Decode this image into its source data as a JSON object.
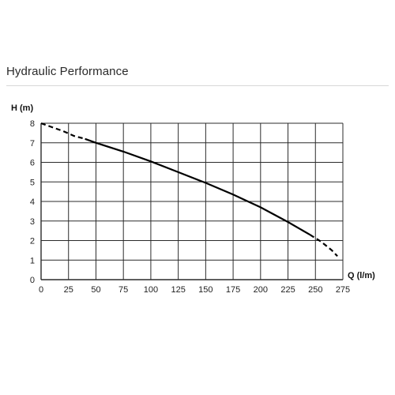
{
  "section": {
    "title": "Hydraulic Performance"
  },
  "chart_data": {
    "type": "line",
    "xlabel": "Q (l/m)",
    "ylabel": "H (m)",
    "xlim": [
      0,
      275
    ],
    "ylim": [
      0,
      8
    ],
    "x_ticks": [
      0,
      25,
      50,
      75,
      100,
      125,
      150,
      175,
      200,
      225,
      250,
      275
    ],
    "y_ticks": [
      0,
      1,
      2,
      3,
      4,
      5,
      6,
      7,
      8
    ],
    "grid": true,
    "color": "#000000",
    "series": [
      {
        "style": "dashed",
        "points": [
          [
            0,
            8.0
          ],
          [
            10,
            7.8
          ],
          [
            20,
            7.6
          ],
          [
            30,
            7.35
          ],
          [
            40,
            7.2
          ]
        ]
      },
      {
        "style": "solid",
        "points": [
          [
            40,
            7.2
          ],
          [
            50,
            7.0
          ],
          [
            75,
            6.55
          ],
          [
            100,
            6.05
          ],
          [
            125,
            5.5
          ],
          [
            150,
            4.95
          ],
          [
            175,
            4.35
          ],
          [
            200,
            3.7
          ],
          [
            225,
            2.95
          ],
          [
            245,
            2.3
          ]
        ]
      },
      {
        "style": "dashed",
        "points": [
          [
            245,
            2.3
          ],
          [
            255,
            1.95
          ],
          [
            265,
            1.5
          ],
          [
            270,
            1.2
          ]
        ]
      }
    ]
  }
}
